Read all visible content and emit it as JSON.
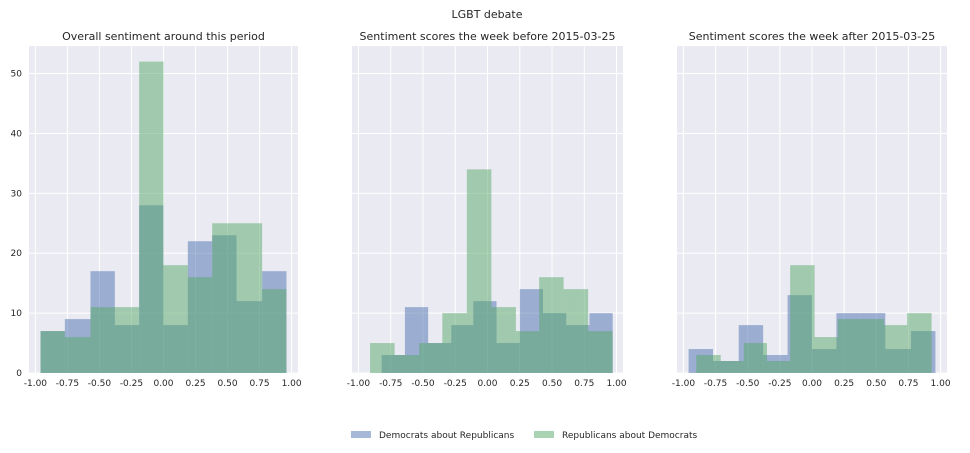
{
  "chart_data": {
    "type": "bar",
    "title": "LGBT debate",
    "x_ticks": [
      "-1.00",
      "-0.75",
      "-0.50",
      "-0.25",
      "0.00",
      "0.25",
      "0.50",
      "0.75",
      "1.00"
    ],
    "y_ticks": [
      "0",
      "10",
      "20",
      "30",
      "40",
      "50"
    ],
    "xlim": [
      -1.05,
      1.05
    ],
    "ylim": [
      0,
      54.6
    ],
    "grid": true,
    "legend_placement": "bottom-center",
    "colors": {
      "dem": "#4c72b0",
      "rep": "#55a868",
      "panel_bg": "#eaeaf2",
      "grid": "#ffffff"
    },
    "series_names": {
      "dem": "Democrats about Republicans",
      "rep": "Republicans about Democrats"
    },
    "panels": [
      {
        "title": "Overall sentiment around this period",
        "series": [
          {
            "name": "Democrats about Republicans",
            "key": "dem",
            "bins": [
              [
                -0.96,
                -0.77,
                7
              ],
              [
                -0.77,
                -0.57,
                9
              ],
              [
                -0.57,
                -0.38,
                17
              ],
              [
                -0.38,
                -0.19,
                8
              ],
              [
                -0.19,
                0.0,
                28
              ],
              [
                0.0,
                0.19,
                8
              ],
              [
                0.19,
                0.38,
                22
              ],
              [
                0.38,
                0.57,
                23
              ],
              [
                0.57,
                0.77,
                12
              ],
              [
                0.77,
                0.96,
                17
              ]
            ]
          },
          {
            "name": "Republicans about Democrats",
            "key": "rep",
            "bins": [
              [
                -0.96,
                -0.77,
                7
              ],
              [
                -0.77,
                -0.57,
                6
              ],
              [
                -0.57,
                -0.38,
                11
              ],
              [
                -0.38,
                -0.19,
                11
              ],
              [
                -0.19,
                0.0,
                52
              ],
              [
                0.0,
                0.19,
                18
              ],
              [
                0.19,
                0.38,
                16
              ],
              [
                0.38,
                0.57,
                25
              ],
              [
                0.57,
                0.77,
                25
              ],
              [
                0.77,
                0.96,
                14
              ]
            ]
          }
        ]
      },
      {
        "title": "Sentiment scores the week before 2015-03-25",
        "series": [
          {
            "name": "Democrats about Republicans",
            "key": "dem",
            "bins": [
              [
                -0.82,
                -0.64,
                3
              ],
              [
                -0.64,
                -0.46,
                11
              ],
              [
                -0.46,
                -0.28,
                5
              ],
              [
                -0.28,
                -0.11,
                8
              ],
              [
                -0.11,
                0.07,
                12
              ],
              [
                0.07,
                0.25,
                5
              ],
              [
                0.25,
                0.43,
                14
              ],
              [
                0.43,
                0.61,
                10
              ],
              [
                0.61,
                0.79,
                8
              ],
              [
                0.79,
                0.97,
                10
              ]
            ]
          },
          {
            "name": "Republicans about Democrats",
            "key": "rep",
            "bins": [
              [
                -0.91,
                -0.72,
                5
              ],
              [
                -0.72,
                -0.53,
                3
              ],
              [
                -0.53,
                -0.35,
                5
              ],
              [
                -0.35,
                -0.16,
                10
              ],
              [
                -0.16,
                0.03,
                34
              ],
              [
                0.03,
                0.22,
                11
              ],
              [
                0.22,
                0.4,
                7
              ],
              [
                0.4,
                0.59,
                16
              ],
              [
                0.59,
                0.78,
                14
              ],
              [
                0.78,
                0.97,
                7
              ]
            ]
          }
        ]
      },
      {
        "title": "Sentiment scores the week after 2015-03-25",
        "series": [
          {
            "name": "Democrats about Republicans",
            "key": "dem",
            "bins": [
              [
                -0.96,
                -0.77,
                4
              ],
              [
                -0.77,
                -0.57,
                2
              ],
              [
                -0.57,
                -0.38,
                8
              ],
              [
                -0.38,
                -0.19,
                3
              ],
              [
                -0.19,
                0.0,
                13
              ],
              [
                0.0,
                0.19,
                4
              ],
              [
                0.19,
                0.38,
                10
              ],
              [
                0.38,
                0.57,
                10
              ],
              [
                0.57,
                0.77,
                4
              ],
              [
                0.77,
                0.96,
                7
              ]
            ]
          },
          {
            "name": "Republicans about Democrats",
            "key": "rep",
            "bins": [
              [
                -0.9,
                -0.71,
                3
              ],
              [
                -0.71,
                -0.53,
                2
              ],
              [
                -0.53,
                -0.35,
                5
              ],
              [
                -0.35,
                -0.17,
                2
              ],
              [
                -0.17,
                0.02,
                18
              ],
              [
                0.02,
                0.2,
                6
              ],
              [
                0.2,
                0.38,
                9
              ],
              [
                0.38,
                0.56,
                9
              ],
              [
                0.56,
                0.74,
                8
              ],
              [
                0.74,
                0.93,
                10
              ]
            ]
          }
        ]
      }
    ]
  }
}
